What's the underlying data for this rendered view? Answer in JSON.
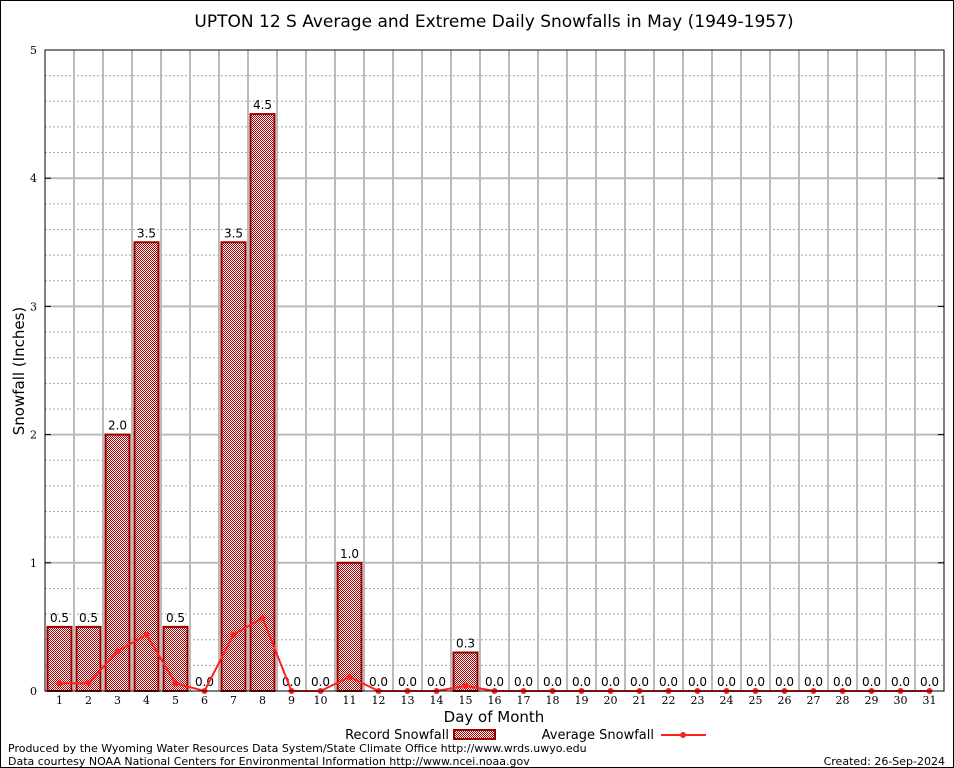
{
  "chart_data": {
    "type": "bar",
    "title": "UPTON 12 S Average and Extreme Daily Snowfalls in May (1949-1957)",
    "xlabel": "Day of Month",
    "ylabel": "Snowfall (Inches)",
    "ylim": [
      0,
      5
    ],
    "yticks": [
      "0",
      "1",
      "2",
      "3",
      "4",
      "5"
    ],
    "categories": [
      "1",
      "2",
      "3",
      "4",
      "5",
      "6",
      "7",
      "8",
      "9",
      "10",
      "11",
      "12",
      "13",
      "14",
      "15",
      "16",
      "17",
      "18",
      "19",
      "20",
      "21",
      "22",
      "23",
      "24",
      "25",
      "26",
      "27",
      "28",
      "29",
      "30",
      "31"
    ],
    "series": [
      {
        "name": "Record Snowfall",
        "type": "bar",
        "color": "#990000",
        "values": [
          0.5,
          0.5,
          2.0,
          3.5,
          0.5,
          0.0,
          3.5,
          4.5,
          0.0,
          0.0,
          1.0,
          0.0,
          0.0,
          0.0,
          0.3,
          0.0,
          0.0,
          0.0,
          0.0,
          0.0,
          0.0,
          0.0,
          0.0,
          0.0,
          0.0,
          0.0,
          0.0,
          0.0,
          0.0,
          0.0,
          0.0
        ],
        "labels": [
          "0.5",
          "0.5",
          "2.0",
          "3.5",
          "0.5",
          "0.0",
          "3.5",
          "4.5",
          "0.0",
          "0.0",
          "1.0",
          "0.0",
          "0.0",
          "0.0",
          "0.3",
          "0.0",
          "0.0",
          "0.0",
          "0.0",
          "0.0",
          "0.0",
          "0.0",
          "0.0",
          "0.0",
          "0.0",
          "0.0",
          "0.0",
          "0.0",
          "0.0",
          "0.0",
          "0.0"
        ]
      },
      {
        "name": "Average Snowfall",
        "type": "line",
        "color": "#ff2020",
        "values": [
          0.06,
          0.06,
          0.31,
          0.44,
          0.06,
          0.0,
          0.44,
          0.57,
          0.0,
          0.0,
          0.11,
          0.0,
          0.0,
          0.0,
          0.04,
          0.0,
          0.0,
          0.0,
          0.0,
          0.0,
          0.0,
          0.0,
          0.0,
          0.0,
          0.0,
          0.0,
          0.0,
          0.0,
          0.0,
          0.0,
          0.0
        ]
      }
    ],
    "grid": true,
    "legend": "bottom-center"
  },
  "footer": {
    "produced_by": "Produced by the Wyoming Water Resources Data System/State Climate Office http://www.wrds.uwyo.edu",
    "courtesy": "Data courtesy NOAA National Centers for Environmental Information http://www.ncei.noaa.gov",
    "created": "Created:  26-Sep-2024"
  }
}
